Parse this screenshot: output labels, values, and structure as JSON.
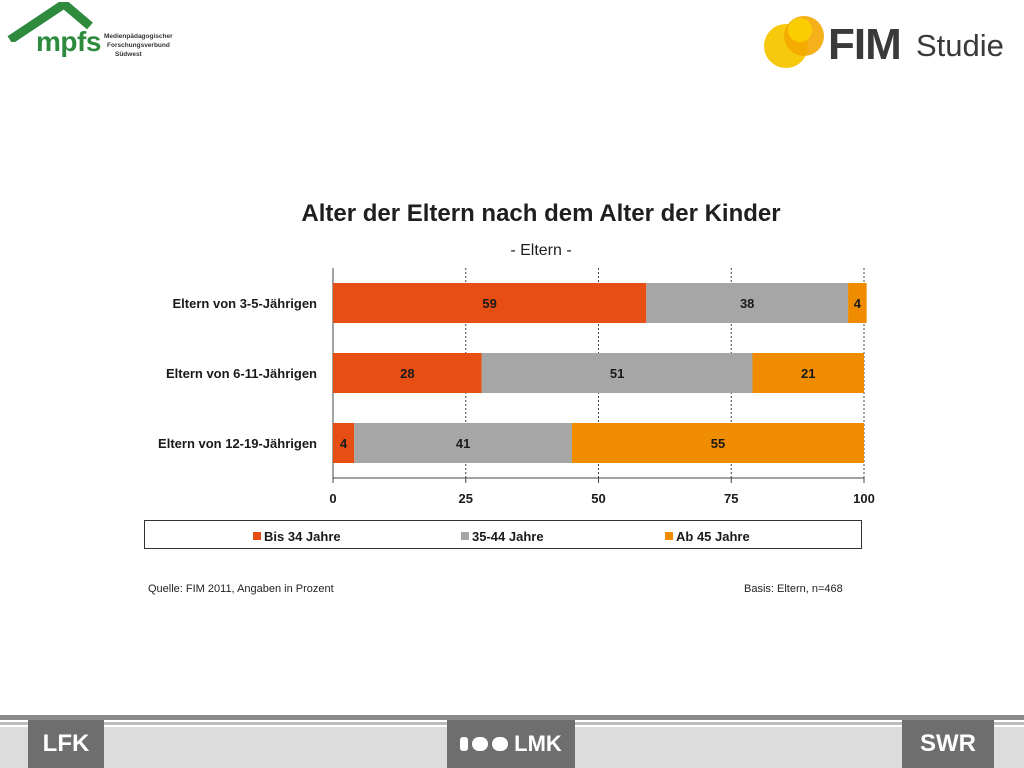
{
  "header": {
    "mpfs_logo": {
      "word": "mpfs",
      "lines": [
        "Medienpädagogischer",
        "Forschungsverbund",
        "Südwest"
      ]
    },
    "fim_logo": {
      "word": "FIM",
      "word2": "Studie"
    }
  },
  "chart_data": {
    "type": "bar",
    "orientation": "horizontal",
    "stacked": true,
    "title": "Alter der Eltern nach dem Alter der Kinder",
    "subtitle": "- Eltern -",
    "categories": [
      "Eltern von 3-5-Jährigen",
      "Eltern von 6-11-Jährigen",
      "Eltern von 12-19-Jährigen"
    ],
    "series": [
      {
        "name": "Bis 34 Jahre",
        "values": [
          59,
          28,
          4
        ],
        "color": "#e64e14"
      },
      {
        "name": "35-44 Jahre",
        "values": [
          38,
          51,
          41
        ],
        "color": "#a6a6a6"
      },
      {
        "name": "Ab 45 Jahre",
        "values": [
          4,
          21,
          55
        ],
        "color": "#f08c00"
      }
    ],
    "xlim": [
      0,
      100
    ],
    "xticks": [
      0,
      25,
      50,
      75,
      100
    ],
    "grid": true,
    "legend_position": "bottom"
  },
  "notes": {
    "source": "Quelle: FIM 2011,  Angaben in Prozent",
    "basis": "Basis: Eltern, n=468"
  },
  "footer": {
    "left_logo": "LFK",
    "center_logo": "LMK",
    "right_logo": "SWR"
  }
}
